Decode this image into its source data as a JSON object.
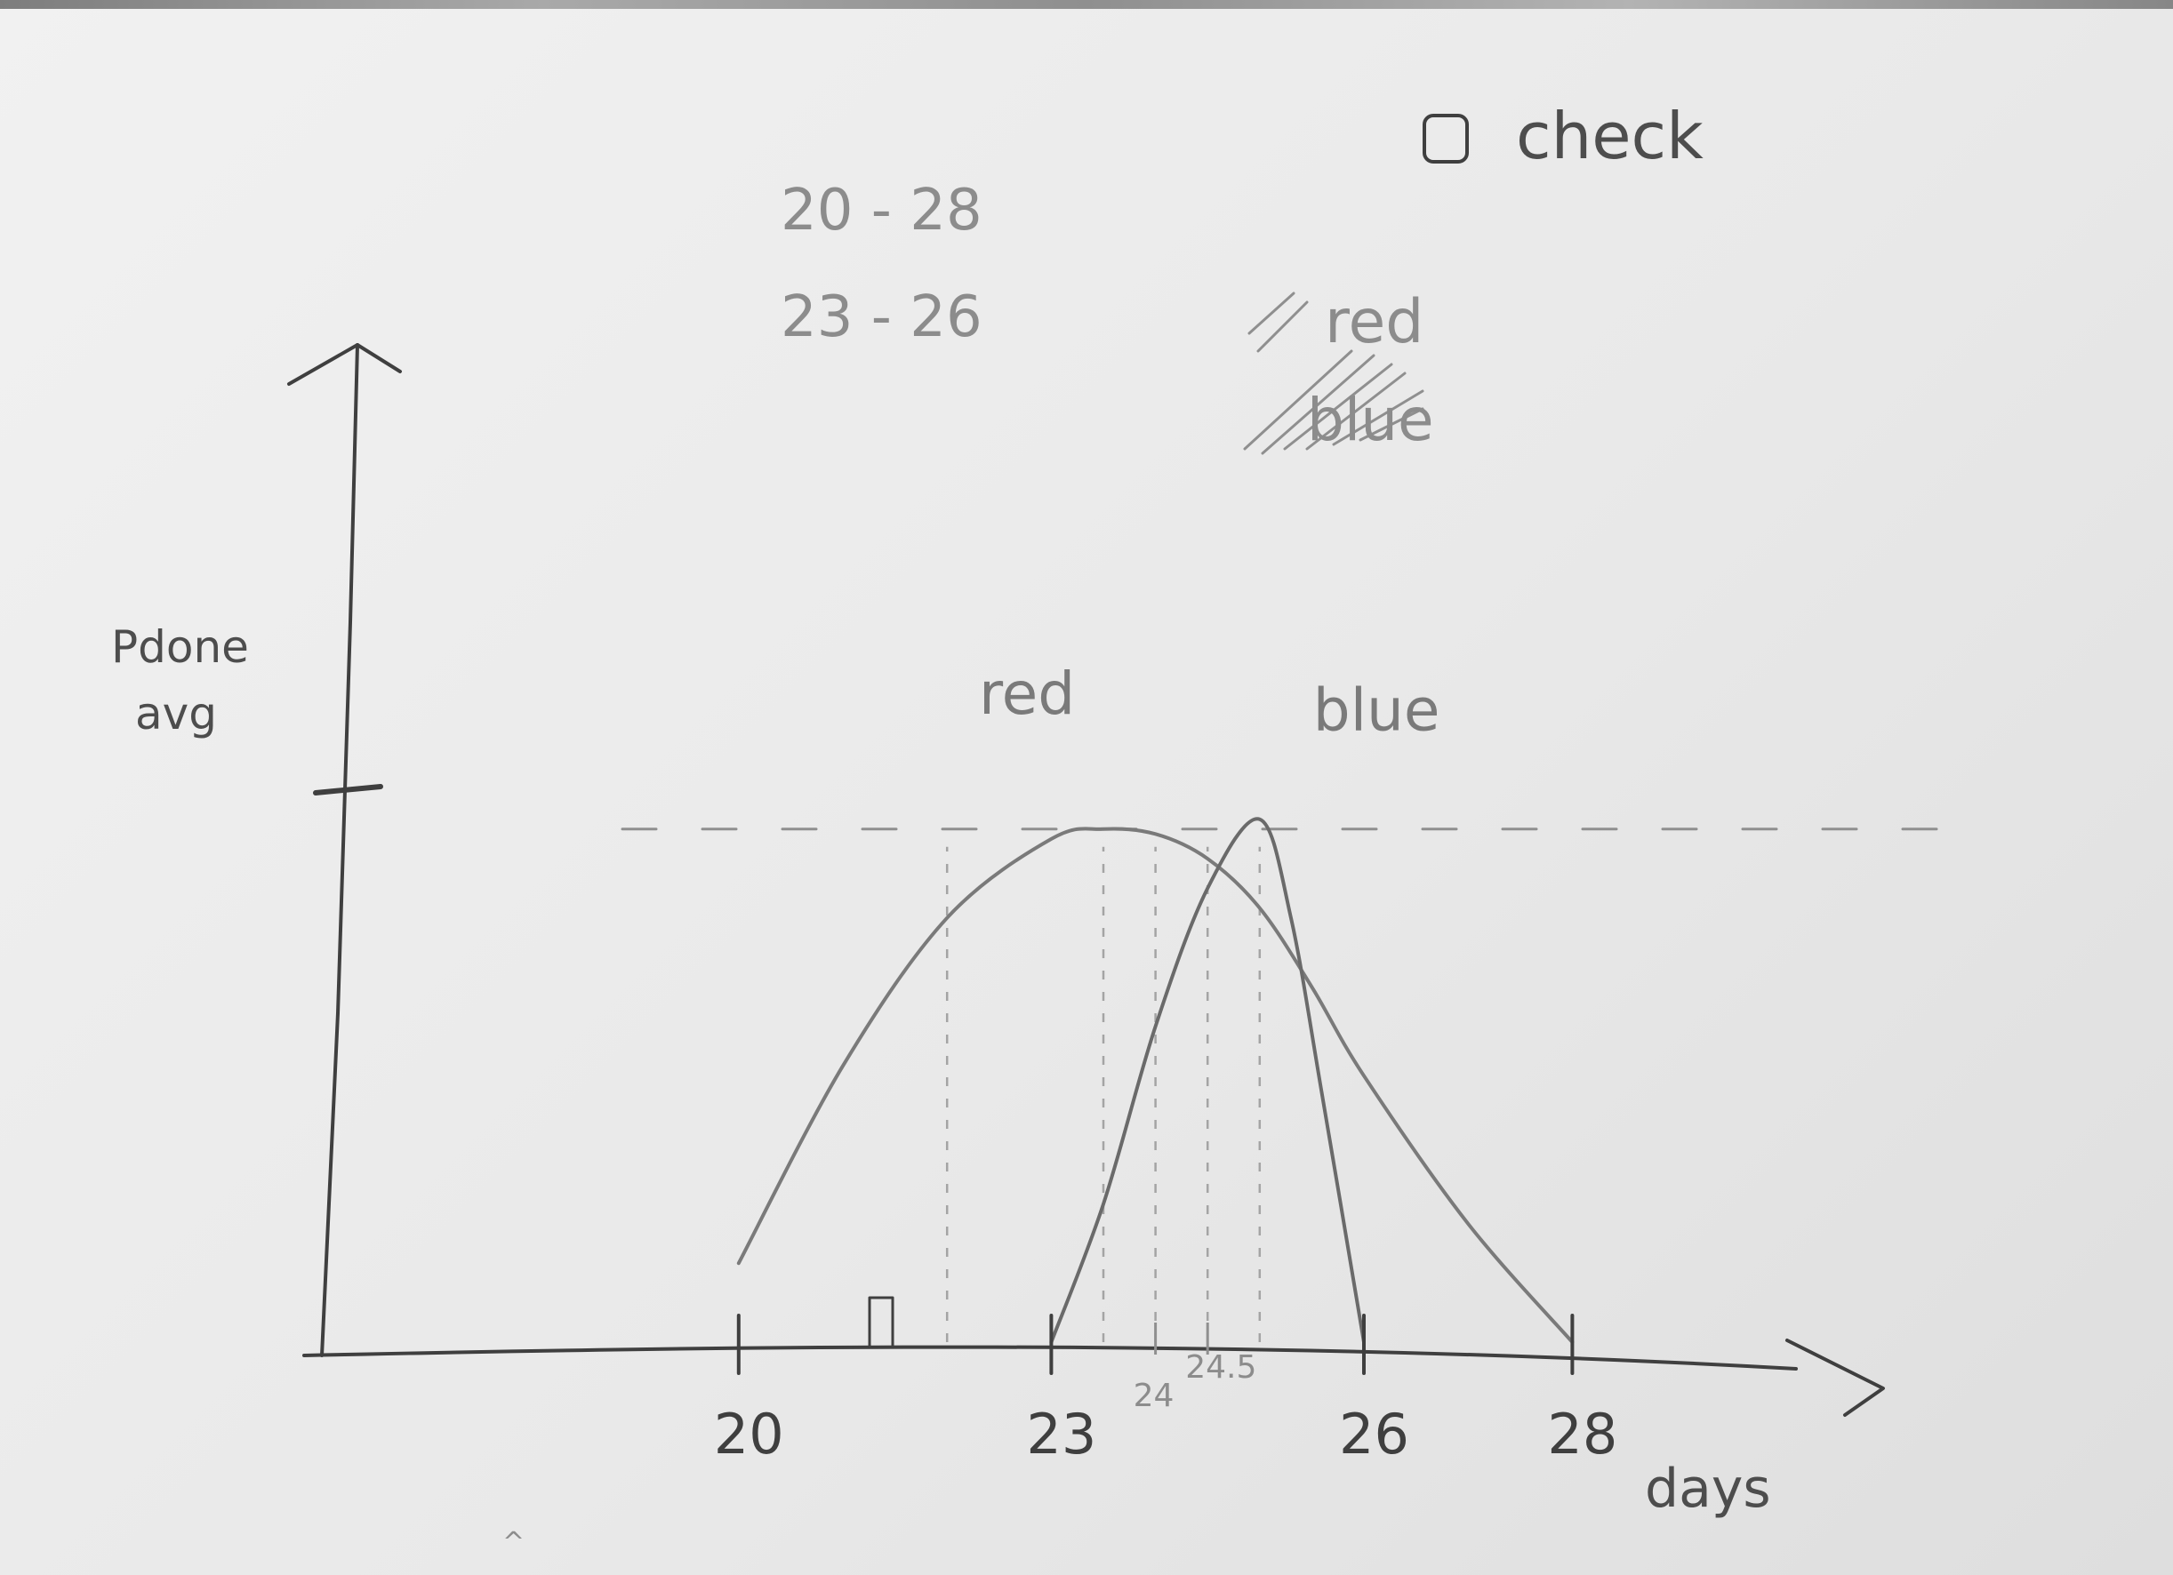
{
  "chart_data": {
    "type": "line",
    "handwritten": true,
    "xlabel": "days",
    "ylabel_lines": [
      "Pdone",
      "avg"
    ],
    "x_ticks": [
      {
        "label": "20",
        "value": 20
      },
      {
        "label": "23",
        "value": 23
      },
      {
        "label": "26",
        "value": 26
      },
      {
        "label": "28",
        "value": 28
      }
    ],
    "minor_ticks": [
      {
        "label": "24",
        "value": 24
      },
      {
        "label": "24.5",
        "value": 24.5
      }
    ],
    "xlim": [
      16,
      31
    ],
    "ylim": [
      0,
      1.0
    ],
    "peak_level": 0.52,
    "series": [
      {
        "name": "red",
        "color": "#7a7a7a",
        "x": [
          20,
          21,
          22,
          23,
          23.5,
          24,
          24.5,
          25,
          25.5,
          26,
          27,
          28
        ],
        "y": [
          0.08,
          0.28,
          0.43,
          0.51,
          0.52,
          0.515,
          0.49,
          0.44,
          0.36,
          0.27,
          0.12,
          0.0
        ]
      },
      {
        "name": "blue",
        "color": "#6a6a6a",
        "x": [
          23,
          23.5,
          24,
          24.5,
          25,
          25.3,
          25.6,
          26
        ],
        "y": [
          0.0,
          0.14,
          0.32,
          0.46,
          0.53,
          0.43,
          0.25,
          0.0
        ]
      }
    ],
    "ranges": [
      "20 - 28",
      "23 - 26"
    ],
    "legend": {
      "checkbox_label": "check",
      "items": [
        "red",
        "blue"
      ]
    }
  }
}
